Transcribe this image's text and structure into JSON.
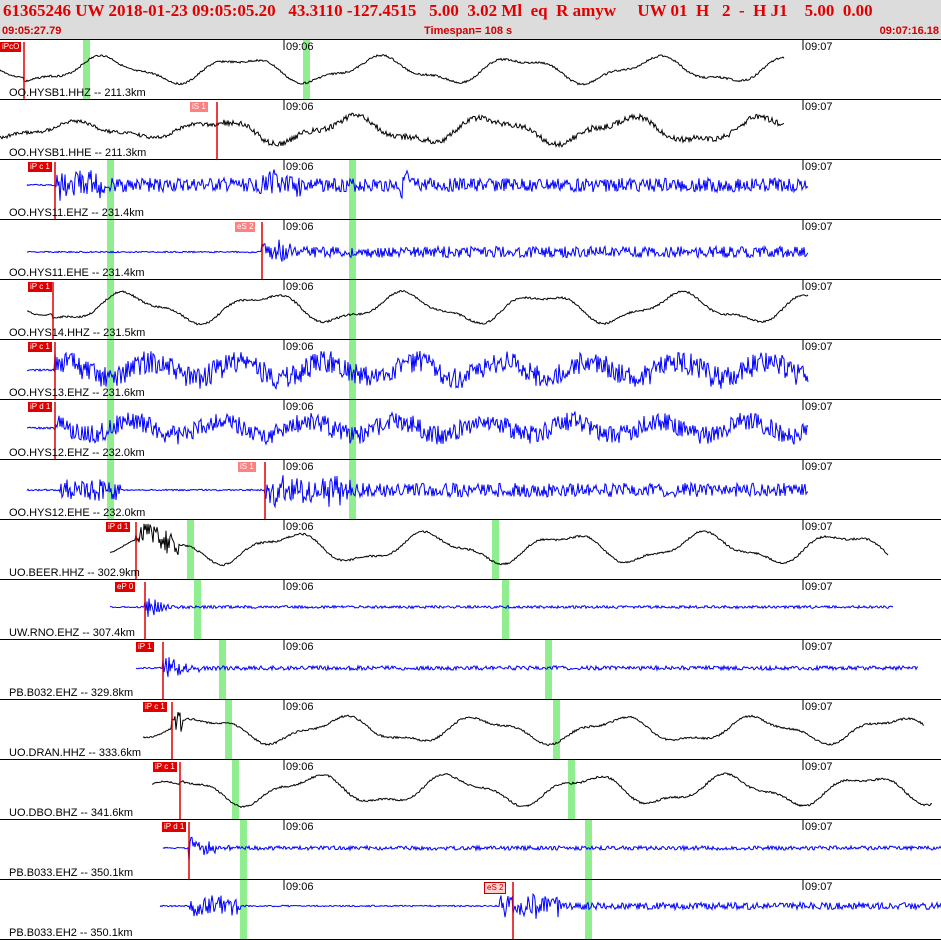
{
  "header": {
    "title": "61365246 UW 2018-01-23 09:05:05.20   43.3110 -127.4515   5.00  3.02 Ml  eq  R amyw     UW 01  H   2  -  H J1    5.00  0.00",
    "start_time": "09:05:27.79",
    "timespan": "Timespan= 108 s",
    "end_time": "09:07:16.18"
  },
  "time_marks": [
    "09:06",
    "09:07"
  ],
  "colors": {
    "vertical": "#0000ff",
    "broadband": "#000000",
    "pick": "#e00000",
    "window": "#90ee90"
  },
  "traces": [
    {
      "label": "OO.HYSB1.HHZ -- 211.3km",
      "pick": "iPcO",
      "pick_type": "p",
      "color": "black"
    },
    {
      "label": "OO.HYSB1.HHE -- 211.3km",
      "pick": "iS 1",
      "pick_type": "s",
      "color": "black"
    },
    {
      "label": "OO.HYS11.EHZ -- 231.4km",
      "pick": "iP c 1",
      "pick_type": "p",
      "color": "blue"
    },
    {
      "label": "OO.HYS11.EHE -- 231.4km",
      "pick": "eS 2",
      "pick_type": "s",
      "color": "blue"
    },
    {
      "label": "OO.HYS14.HHZ -- 231.5km",
      "pick": "iP c 1",
      "pick_type": "p",
      "color": "black"
    },
    {
      "label": "OO.HYS13.EHZ -- 231.6km",
      "pick": "iP c 1",
      "pick_type": "p",
      "color": "blue"
    },
    {
      "label": "OO.HYS12.EHZ -- 232.0km",
      "pick": "iP d 1",
      "pick_type": "p",
      "color": "blue"
    },
    {
      "label": "OO.HYS12.EHE -- 232.0km",
      "pick": "iS 1",
      "pick_type": "s",
      "color": "blue"
    },
    {
      "label": "UO.BEER.HHZ -- 302.9km",
      "pick": "iP d 1",
      "pick_type": "p",
      "color": "black"
    },
    {
      "label": "UW.RNO.EHZ -- 307.4km",
      "pick": "eP 0",
      "pick_type": "p",
      "color": "blue"
    },
    {
      "label": "PB.B032.EHZ -- 329.8km",
      "pick": "iP 1",
      "pick_type": "p",
      "color": "blue"
    },
    {
      "label": "UO.DRAN.HHZ -- 333.6km",
      "pick": "iP c 1",
      "pick_type": "p",
      "color": "black"
    },
    {
      "label": "UO.DBO.BHZ -- 341.6km",
      "pick": "iP c 1",
      "pick_type": "p",
      "color": "black"
    },
    {
      "label": "PB.B033.EHZ -- 350.1km",
      "pick": "iP d 1",
      "pick_type": "p",
      "color": "blue"
    },
    {
      "label": "PB.B033.EH2 -- 350.1km",
      "pick": "eS 2",
      "pick_type": "s2",
      "color": "blue"
    }
  ]
}
